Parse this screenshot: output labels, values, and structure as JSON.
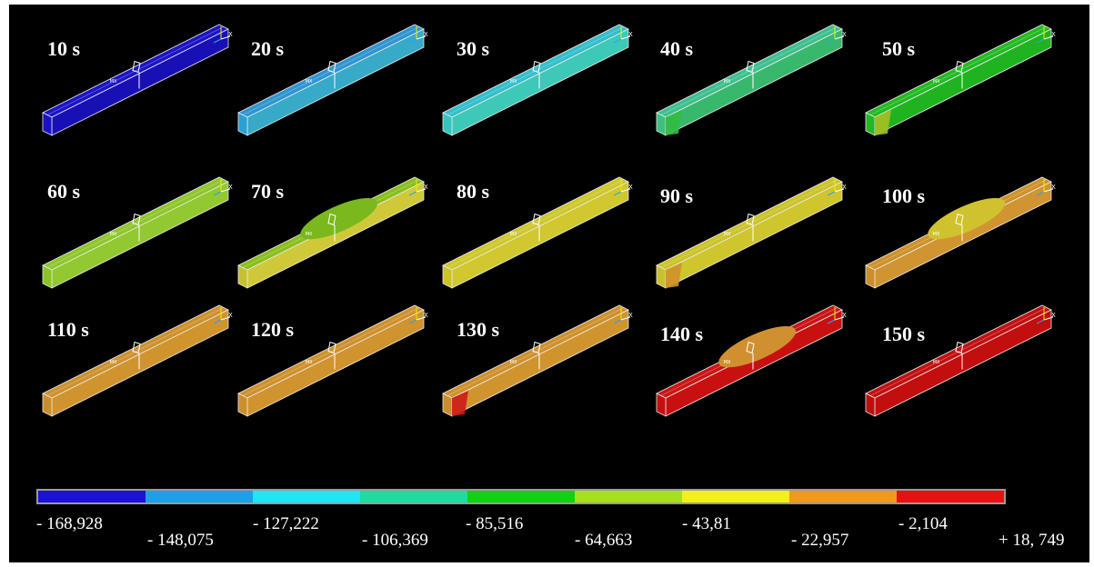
{
  "frames": [
    {
      "time": "10 s",
      "top": "#1c14c8",
      "front": "#1810b4",
      "side": "#1a12be",
      "blob": null,
      "corner": null
    },
    {
      "time": "20 s",
      "top": "#2f95d2",
      "front": "#36aac8",
      "side": "#2aa0d4",
      "blob": null,
      "corner": null
    },
    {
      "time": "30 s",
      "top": "#33bfcc",
      "front": "#3dc8b8",
      "side": "#36c4c0",
      "blob": null,
      "corner": null
    },
    {
      "time": "40 s",
      "top": "#3ec08e",
      "front": "#38b86c",
      "side": "#3cc080",
      "blob": null,
      "corner": "#33bb44"
    },
    {
      "time": "50 s",
      "top": "#22bb22",
      "front": "#1fb31f",
      "side": "#22b822",
      "blob": null,
      "corner": "#a6c020"
    },
    {
      "time": "60 s",
      "top": "#8ec72a",
      "front": "#92c830",
      "side": "#8ac428",
      "blob": null,
      "corner": null
    },
    {
      "time": "70 s",
      "top": "#8abf1c",
      "front": "#cfc93a",
      "side": "#c8c030",
      "blob": "#7ab81e",
      "corner": null
    },
    {
      "time": "80 s",
      "top": "#cfc82a",
      "front": "#d0c82e",
      "side": "#ccc42a",
      "blob": null,
      "corner": null
    },
    {
      "time": "90 s",
      "top": "#cbc42a",
      "front": "#cfc52c",
      "side": "#c9c12a",
      "blob": null,
      "corner": "#d0902a"
    },
    {
      "time": "100 s",
      "top": "#cf9228",
      "front": "#d09430",
      "side": "#cc8e28",
      "blob": "#d0c22e",
      "corner": null
    },
    {
      "time": "110 s",
      "top": "#cf912c",
      "front": "#d0942e",
      "side": "#cc8e2c",
      "blob": null,
      "corner": null
    },
    {
      "time": "120 s",
      "top": "#cf912c",
      "front": "#d0942e",
      "side": "#cc8e2c",
      "blob": null,
      "corner": null
    },
    {
      "time": "130 s",
      "top": "#cf912c",
      "front": "#d0942e",
      "side": "#cc8e2c",
      "blob": null,
      "corner": "#cc1a1a"
    },
    {
      "time": "140 s",
      "top": "#cc1414",
      "front": "#c81010",
      "side": "#c41010",
      "blob": "#d09030",
      "corner": null
    },
    {
      "time": "150 s",
      "top": "#c41010",
      "front": "#c20e0e",
      "side": "#be0e0e",
      "blob": null,
      "corner": null
    }
  ],
  "colorbar": {
    "colors": [
      "#1c12d6",
      "#1ea0e8",
      "#1ee6f4",
      "#1edca0",
      "#10d210",
      "#a6e01a",
      "#f2f016",
      "#ef9a1a",
      "#e81010"
    ],
    "ticks": [
      "- 168,928",
      "- 148,075",
      "- 127,222",
      "- 106,369",
      "- 85,516",
      "- 64,663",
      "- 43,81",
      "- 22,957",
      "- 2,104",
      "+ 18, 749"
    ]
  }
}
